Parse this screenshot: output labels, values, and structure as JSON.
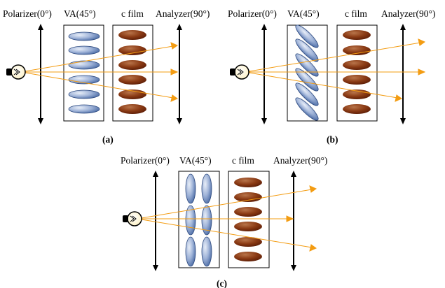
{
  "panels": [
    {
      "id": "a",
      "caption": "(a)",
      "labels": {
        "polarizer": "Polarizer(0°)",
        "va": "VA(45°)",
        "cfilm": "c film",
        "analyzer": "Analyzer(90°)"
      }
    },
    {
      "id": "b",
      "caption": "(b)",
      "labels": {
        "polarizer": "Polarizer(0°)",
        "va": "VA(45°)",
        "cfilm": "c film",
        "analyzer": "Analyzer(90°)"
      }
    },
    {
      "id": "c",
      "caption": "(c)",
      "labels": {
        "polarizer": "Polarizer(0°)",
        "va": "VA(45°)",
        "cfilm": "c film",
        "analyzer": "Analyzer(90°)"
      }
    }
  ],
  "colors": {
    "ray": "#f39c12",
    "lc_molecule_light": "#e8eef8",
    "lc_molecule_dark": "#4f6fa8",
    "film_molecule_light": "#b8744a",
    "film_molecule_dark": "#5a1c06",
    "axis": "#000000"
  },
  "icons": {
    "light_source": "light-bulb-icon",
    "polarizer_axis": "double-arrow-icon"
  }
}
